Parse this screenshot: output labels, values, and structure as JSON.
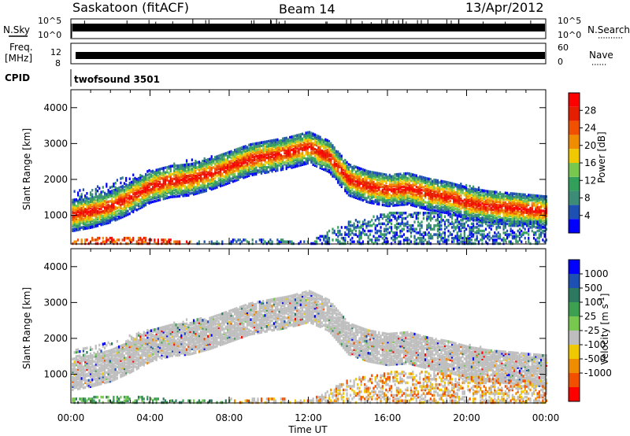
{
  "header": {
    "station": "Saskatoon (fitACF)",
    "beam": "Beam 14",
    "date": "13/Apr/2012"
  },
  "strips": {
    "nsky_label": "N.Sky",
    "nsky_ticks": [
      "10^5",
      "10^0"
    ],
    "nsearch_label": "N.Search",
    "nsearch_ticks": [
      "10^5",
      "10^0"
    ],
    "freq_label_top": "Freq.",
    "freq_label_unit": "[MHz]",
    "freq_ticks": [
      "12",
      "8"
    ],
    "nave_label": "Nave",
    "nave_ticks": [
      "60",
      "0"
    ],
    "cpid_label": "CPID",
    "cpid_value": "twofsound 3501"
  },
  "colors": {
    "power_scale": [
      "#0000ff",
      "#1e50b4",
      "#3c8c78",
      "#32a05a",
      "#78c850",
      "#f0c800",
      "#f08c00",
      "#f05000",
      "#e61e00",
      "#ff0000"
    ],
    "velocity_scale": [
      "#0000ff",
      "#1e50b4",
      "#2d7860",
      "#3ca050",
      "#78c850",
      "#bebebe",
      "#f0c800",
      "#f08c00",
      "#f05000",
      "#ff0000"
    ],
    "ground_scatter": "#bebebe"
  },
  "chart_data": [
    {
      "type": "heatmap",
      "name": "power",
      "ylabel": "Slant Range [km]",
      "xlabel": "",
      "y_ticks": [
        1000,
        2000,
        3000,
        4000
      ],
      "ylim": [
        200,
        4500
      ],
      "x_ticks": [
        "00:00",
        "04:00",
        "08:00",
        "12:00",
        "16:00",
        "20:00",
        "00:00"
      ],
      "xlim_hours": [
        0,
        24
      ],
      "colorbar_label": "Power [dB]",
      "colorbar_ticks": [
        "4",
        "8",
        "12",
        "16",
        "20",
        "24",
        "28"
      ],
      "colorbar_range": [
        0,
        32
      ],
      "bands": [
        {
          "kind": "main",
          "points": [
            [
              0,
              1050
            ],
            [
              1,
              1150
            ],
            [
              2,
              1300
            ],
            [
              3,
              1550
            ],
            [
              4,
              1850
            ],
            [
              5,
              2000
            ],
            [
              6,
              2050
            ],
            [
              7,
              2200
            ],
            [
              8,
              2400
            ],
            [
              9,
              2600
            ],
            [
              10,
              2700
            ],
            [
              11,
              2800
            ],
            [
              12,
              2950
            ],
            [
              13,
              2700
            ],
            [
              14,
              2050
            ],
            [
              15,
              1850
            ],
            [
              16,
              1750
            ],
            [
              17,
              1800
            ],
            [
              18,
              1650
            ],
            [
              19,
              1550
            ],
            [
              20,
              1400
            ],
            [
              21,
              1300
            ],
            [
              22,
              1250
            ],
            [
              23,
              1200
            ],
            [
              24,
              1150
            ]
          ]
        },
        {
          "kind": "outer",
          "points": [
            [
              0,
              1700
            ],
            [
              2,
              2000
            ],
            [
              4,
              2300
            ],
            [
              6,
              2600
            ],
            [
              8,
              2800
            ],
            [
              10,
              3000
            ],
            [
              12,
              3200
            ],
            [
              13,
              3000
            ],
            [
              14,
              2300
            ],
            [
              16,
              2100
            ],
            [
              18,
              2000
            ],
            [
              20,
              1900
            ],
            [
              22,
              1600
            ],
            [
              24,
              1600
            ]
          ]
        },
        {
          "kind": "near",
          "points": [
            [
              0,
              350
            ],
            [
              2,
              450
            ],
            [
              4,
              400
            ],
            [
              6,
              300
            ],
            [
              8,
              350
            ],
            [
              10,
              400
            ],
            [
              12,
              300
            ],
            [
              14,
              900
            ],
            [
              16,
              1100
            ],
            [
              18,
              1150
            ],
            [
              20,
              1000
            ],
            [
              22,
              900
            ],
            [
              24,
              900
            ]
          ]
        }
      ]
    },
    {
      "type": "heatmap",
      "name": "velocity",
      "ylabel": "Slant Range [km]",
      "xlabel": "Time UT",
      "y_ticks": [
        1000,
        2000,
        3000,
        4000
      ],
      "ylim": [
        200,
        4500
      ],
      "x_ticks": [
        "00:00",
        "04:00",
        "08:00",
        "12:00",
        "16:00",
        "20:00",
        "00:00"
      ],
      "xlim_hours": [
        0,
        24
      ],
      "colorbar_label": "Velocity [m s^-1]",
      "colorbar_ticks": [
        "1000",
        "500",
        "100",
        "25",
        "-25",
        "-100",
        "-500",
        "-1000"
      ],
      "bands": [
        {
          "kind": "main",
          "points": [
            [
              0,
              1050
            ],
            [
              1,
              1150
            ],
            [
              2,
              1300
            ],
            [
              3,
              1550
            ],
            [
              4,
              1850
            ],
            [
              5,
              2000
            ],
            [
              6,
              2050
            ],
            [
              7,
              2200
            ],
            [
              8,
              2400
            ],
            [
              9,
              2600
            ],
            [
              10,
              2700
            ],
            [
              11,
              2800
            ],
            [
              12,
              2950
            ],
            [
              13,
              2700
            ],
            [
              14,
              2050
            ],
            [
              15,
              1850
            ],
            [
              16,
              1750
            ],
            [
              17,
              1800
            ],
            [
              18,
              1650
            ],
            [
              19,
              1550
            ],
            [
              20,
              1400
            ],
            [
              21,
              1300
            ],
            [
              22,
              1250
            ],
            [
              23,
              1200
            ],
            [
              24,
              1150
            ]
          ]
        }
      ]
    }
  ]
}
